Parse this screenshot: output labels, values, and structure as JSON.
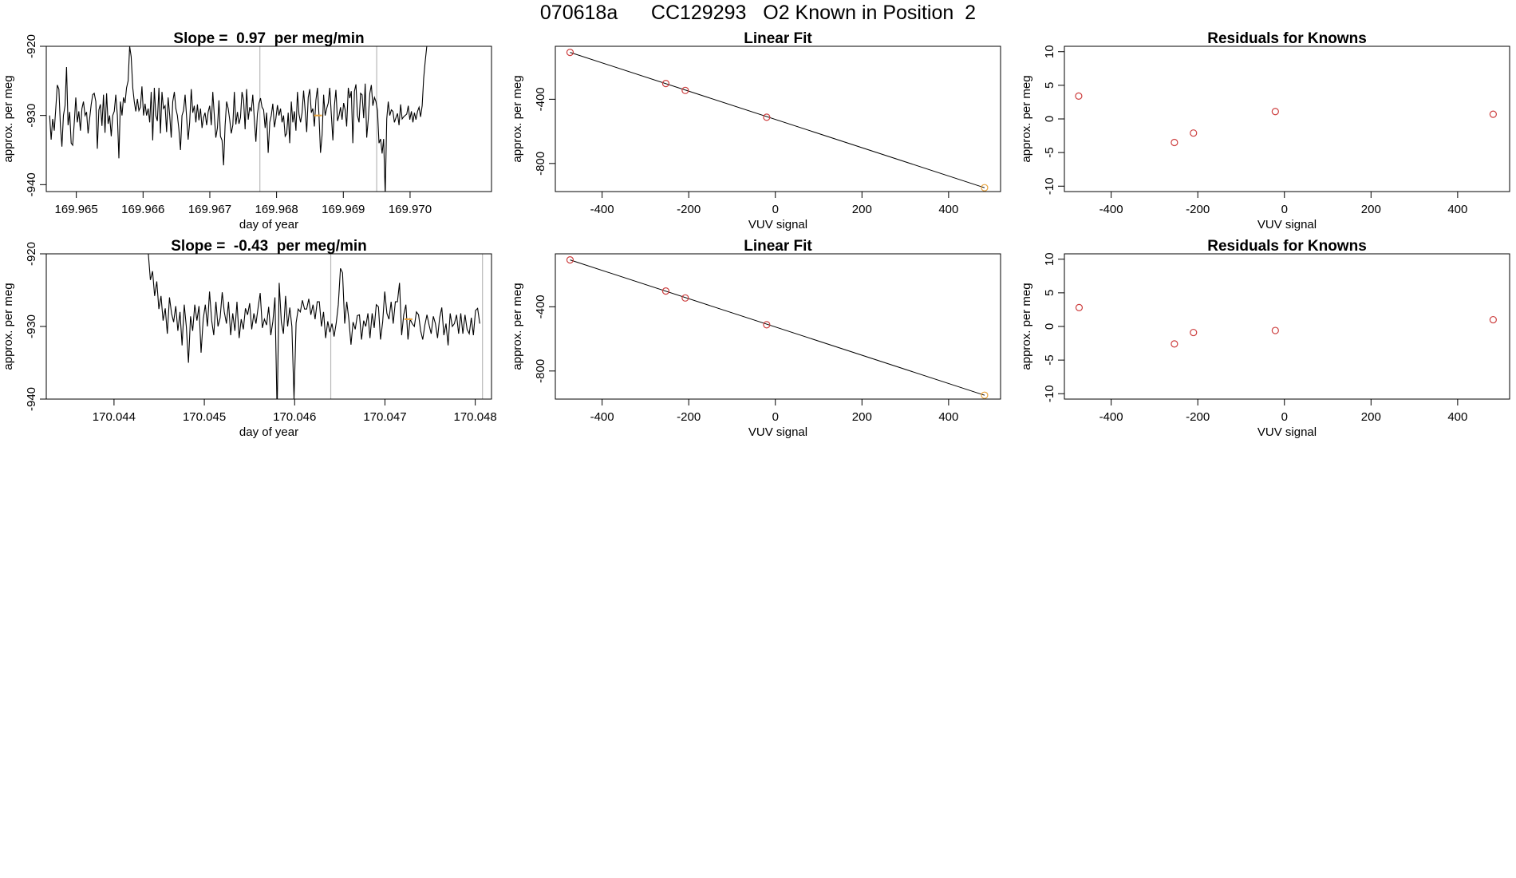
{
  "title": "070618a      CC129293   O2 Known in Position  2",
  "colors": {
    "line": "#000000",
    "point": "#cd3f3f",
    "highlight": "#e8a33c",
    "vline": "#b8b8b8"
  },
  "chart_data": [
    {
      "id": "ts1",
      "type": "line",
      "title": "Slope =  0.97  per meg/min",
      "xlabel": "day of year",
      "ylabel": "approx. per meg",
      "xlim": [
        169.96455,
        169.97122
      ],
      "ylim": [
        -941,
        -920
      ],
      "xticks": [
        169.965,
        169.966,
        169.967,
        169.968,
        169.969,
        169.97
      ],
      "xtick_labels": [
        "169.965",
        "169.966",
        "169.967",
        "169.968",
        "169.969",
        "169.970"
      ],
      "yticks": [
        -940,
        -930,
        -920
      ],
      "ytick_labels": [
        "-940",
        "-930",
        "-920"
      ],
      "vlines": [
        169.96775,
        169.9695
      ],
      "highlight": {
        "x": 169.96862,
        "y": -930
      },
      "series": [
        {
          "x_start": 169.9646,
          "x_end": 169.97025,
          "values": [
            -930,
            -933.5,
            -930.5,
            -932.2,
            -929,
            -925.6,
            -926.2,
            -931.5,
            -934.5,
            -930,
            -928.6,
            -923,
            -931.4,
            -929.5,
            -934,
            -934.3,
            -931,
            -927.4,
            -931,
            -929.4,
            -932.2,
            -929,
            -928,
            -930,
            -929.5,
            -932.6,
            -930.5,
            -928.4,
            -927,
            -926.8,
            -928,
            -934.8,
            -929.2,
            -928.4,
            -931.5,
            -927,
            -932.5,
            -926.8,
            -931.2,
            -930,
            -933,
            -930,
            -929.4,
            -927,
            -930,
            -936.2,
            -928,
            -930,
            -927.4,
            -928.2,
            -926,
            -925,
            -920,
            -921.5,
            -926,
            -928,
            -929.4,
            -927.6,
            -929.3,
            -928.8,
            -925.8,
            -930,
            -928.3,
            -930,
            -929,
            -931,
            -926.6,
            -933.6,
            -926,
            -930,
            -930.8,
            -926,
            -932.6,
            -926.6,
            -929,
            -928.6,
            -932.4,
            -927.4,
            -930,
            -933.2,
            -928,
            -926.6,
            -929,
            -930,
            -932,
            -935,
            -930,
            -929.3,
            -927,
            -930.3,
            -933.5,
            -931,
            -926.2,
            -929.6,
            -928.6,
            -931,
            -928.4,
            -930.7,
            -929,
            -931.8,
            -930.3,
            -929.6,
            -931.4,
            -929.5,
            -928.6,
            -931.4,
            -926.6,
            -930,
            -933.2,
            -931.8,
            -927.8,
            -933,
            -933.6,
            -937.2,
            -931.5,
            -928,
            -929,
            -930.6,
            -932.6,
            -931.4,
            -926.6,
            -931.3,
            -929.5,
            -931.2,
            -930.3,
            -926.6,
            -927.8,
            -932,
            -926.2,
            -930.6,
            -928.8,
            -929.4,
            -927,
            -930.6,
            -933.8,
            -929.8,
            -928.2,
            -927.5,
            -928.8,
            -929.2,
            -931.8,
            -929.6,
            -935.4,
            -931,
            -930,
            -928.3,
            -931.7,
            -930.4,
            -928.5,
            -930,
            -929,
            -931,
            -930,
            -933,
            -932.6,
            -929.6,
            -934,
            -928,
            -931,
            -929.4,
            -932.2,
            -926.6,
            -929.8,
            -931,
            -929.6,
            -926.4,
            -929.2,
            -932.4,
            -927.4,
            -926.2,
            -929.6,
            -929,
            -931.6,
            -927.8,
            -926,
            -930,
            -935.4,
            -932.8,
            -927,
            -930,
            -929,
            -928.2,
            -926,
            -929.8,
            -933.6,
            -928.6,
            -926.3,
            -930.8,
            -930,
            -928.8,
            -930.6,
            -928.2,
            -929.2,
            -931.6,
            -926,
            -927.5,
            -926.5,
            -934,
            -926.5,
            -925.5,
            -930,
            -931,
            -926.8,
            -927,
            -930.4,
            -925.4,
            -933.2,
            -930.6,
            -926.8,
            -925.6,
            -928.6,
            -927.4,
            -928,
            -929.3,
            -934,
            -933.4,
            -935.5,
            -933.4,
            -941.5,
            -930.5,
            -928,
            -930,
            -929.2,
            -929.4,
            -931,
            -930.3,
            -929.7,
            -931.4,
            -928.4,
            -930.5,
            -930.2,
            -930,
            -929.8,
            -928.6,
            -930.6,
            -929.4,
            -931,
            -929.6,
            -930.6,
            -929.4,
            -928.8,
            -930.2,
            -928.6,
            -924.6,
            -922.2,
            -920
          ]
        }
      ]
    },
    {
      "id": "fit1",
      "type": "scatter",
      "title": "Linear Fit",
      "xlabel": "VUV signal",
      "ylabel": "approx. per meg",
      "xlim": [
        -508,
        520
      ],
      "ylim": [
        -975,
        -70
      ],
      "xticks": [
        -400,
        -200,
        0,
        200,
        400
      ],
      "xtick_labels": [
        "-400",
        "-200",
        "0",
        "200",
        "400"
      ],
      "yticks": [
        -800,
        -400
      ],
      "ytick_labels": [
        "-800",
        "-400"
      ],
      "line": [
        [
          -474,
          -108
        ],
        [
          483,
          -951
        ]
      ],
      "points": [
        {
          "x": -474,
          "y": -108,
          "highlight": false
        },
        {
          "x": -253,
          "y": -302,
          "highlight": false
        },
        {
          "x": -208,
          "y": -345,
          "highlight": false
        },
        {
          "x": -20,
          "y": -512,
          "highlight": false
        },
        {
          "x": 483,
          "y": -951,
          "highlight": true
        }
      ]
    },
    {
      "id": "res1",
      "type": "scatter",
      "title": "Residuals for Knowns",
      "xlabel": "VUV signal",
      "ylabel": "approx. per meg",
      "xlim": [
        -508,
        520
      ],
      "ylim": [
        -10.8,
        10.8
      ],
      "xticks": [
        -400,
        -200,
        0,
        200,
        400
      ],
      "xtick_labels": [
        "-400",
        "-200",
        "0",
        "200",
        "400"
      ],
      "yticks": [
        -10,
        -5,
        0,
        5,
        10
      ],
      "ytick_labels": [
        "-10",
        "-5",
        "0",
        "5",
        "10"
      ],
      "points": [
        {
          "x": -475,
          "y": 3.4,
          "highlight": false
        },
        {
          "x": -254,
          "y": -3.5,
          "highlight": false
        },
        {
          "x": -210,
          "y": -2.1,
          "highlight": false
        },
        {
          "x": -21,
          "y": 1.1,
          "highlight": false
        },
        {
          "x": 482,
          "y": 0.7,
          "highlight": false
        }
      ]
    },
    {
      "id": "ts2",
      "type": "line",
      "title": "Slope =  -0.43  per meg/min",
      "xlabel": "day of year",
      "ylabel": "approx. per meg",
      "xlim": [
        170.04325,
        170.04818
      ],
      "ylim": [
        -940,
        -920
      ],
      "xticks": [
        170.044,
        170.045,
        170.046,
        170.047,
        170.048
      ],
      "xtick_labels": [
        "170.044",
        "170.045",
        "170.046",
        "170.047",
        "170.048"
      ],
      "yticks": [
        -940,
        -930,
        -920
      ],
      "ytick_labels": [
        "-940",
        "-930",
        "-920"
      ],
      "vlines": [
        170.0464,
        170.04808
      ],
      "highlight": {
        "x": 170.04726,
        "y": -929
      },
      "series": [
        {
          "x_start": 170.04438,
          "x_end": 170.04805,
          "values": [
            -920,
            -923.6,
            -922.4,
            -925.8,
            -923.8,
            -927.6,
            -925.8,
            -929.2,
            -927.5,
            -931,
            -926,
            -928.2,
            -929.4,
            -927.2,
            -930.6,
            -928,
            -932.6,
            -927,
            -930,
            -935,
            -928.6,
            -930.6,
            -927,
            -929.2,
            -927.2,
            -933.6,
            -929,
            -927,
            -930,
            -925.2,
            -929.2,
            -931.2,
            -926.6,
            -930,
            -928.8,
            -925.3,
            -928,
            -929.6,
            -926.6,
            -931.2,
            -928.2,
            -930.6,
            -926.6,
            -931.6,
            -929,
            -930.4,
            -927.5,
            -928.4,
            -926.8,
            -930.4,
            -928.2,
            -929.6,
            -927.4,
            -925.4,
            -930.2,
            -929,
            -929.8,
            -927.3,
            -931.2,
            -929.3,
            -926,
            -942,
            -924,
            -929.4,
            -931,
            -925.8,
            -930,
            -927.4,
            -930,
            -940,
            -929.5,
            -927.6,
            -928,
            -926.4,
            -927.6,
            -927.6,
            -926.2,
            -928.4,
            -927,
            -929,
            -926.6,
            -926.6,
            -930,
            -928,
            -931.6,
            -929.3,
            -930.8,
            -929.6,
            -931.4,
            -929.5,
            -927,
            -922,
            -922.6,
            -929.6,
            -926.6,
            -929,
            -932.5,
            -929.4,
            -930.4,
            -928.5,
            -928.4,
            -931.8,
            -929.2,
            -930,
            -928.2,
            -931.6,
            -928.2,
            -930.2,
            -927,
            -927.3,
            -931.8,
            -929.4,
            -925.2,
            -928.2,
            -929,
            -926.6,
            -929.6,
            -926.6,
            -926.6,
            -924,
            -931.2,
            -928.4,
            -927,
            -931.8,
            -929,
            -929.6,
            -930,
            -928,
            -928.4,
            -930.6,
            -931.8,
            -929.8,
            -928.4,
            -929.8,
            -931,
            -928.6,
            -929.6,
            -931.6,
            -928.8,
            -927.4,
            -931.2,
            -929.6,
            -932.6,
            -928.2,
            -930,
            -929.6,
            -928.4,
            -931,
            -928.2,
            -931,
            -928.4,
            -930.4,
            -931,
            -928.8,
            -931.2,
            -927.8,
            -927.5,
            -929.6
          ]
        }
      ]
    },
    {
      "id": "fit2",
      "type": "scatter",
      "title": "Linear Fit",
      "xlabel": "VUV signal",
      "ylabel": "approx. per meg",
      "xlim": [
        -508,
        520
      ],
      "ylim": [
        -975,
        -70
      ],
      "xticks": [
        -400,
        -200,
        0,
        200,
        400
      ],
      "xtick_labels": [
        "-400",
        "-200",
        "0",
        "200",
        "400"
      ],
      "yticks": [
        -800,
        -400
      ],
      "ytick_labels": [
        "-800",
        "-400"
      ],
      "line": [
        [
          -474,
          -108
        ],
        [
          483,
          -951
        ]
      ],
      "points": [
        {
          "x": -474,
          "y": -108,
          "highlight": false
        },
        {
          "x": -253,
          "y": -302,
          "highlight": false
        },
        {
          "x": -208,
          "y": -345,
          "highlight": false
        },
        {
          "x": -20,
          "y": -512,
          "highlight": false
        },
        {
          "x": 483,
          "y": -951,
          "highlight": true
        }
      ]
    },
    {
      "id": "res2",
      "type": "scatter",
      "title": "Residuals for Knowns",
      "xlabel": "VUV signal",
      "ylabel": "approx. per meg",
      "xlim": [
        -508,
        520
      ],
      "ylim": [
        -10.8,
        10.8
      ],
      "xticks": [
        -400,
        -200,
        0,
        200,
        400
      ],
      "xtick_labels": [
        "-400",
        "-200",
        "0",
        "200",
        "400"
      ],
      "yticks": [
        -10,
        -5,
        0,
        5,
        10
      ],
      "ytick_labels": [
        "-10",
        "-5",
        "0",
        "5",
        "10"
      ],
      "points": [
        {
          "x": -474,
          "y": 2.8,
          "highlight": false
        },
        {
          "x": -254,
          "y": -2.6,
          "highlight": false
        },
        {
          "x": -210,
          "y": -0.9,
          "highlight": false
        },
        {
          "x": -21,
          "y": -0.6,
          "highlight": false
        },
        {
          "x": 482,
          "y": 1.0,
          "highlight": false
        }
      ]
    }
  ]
}
